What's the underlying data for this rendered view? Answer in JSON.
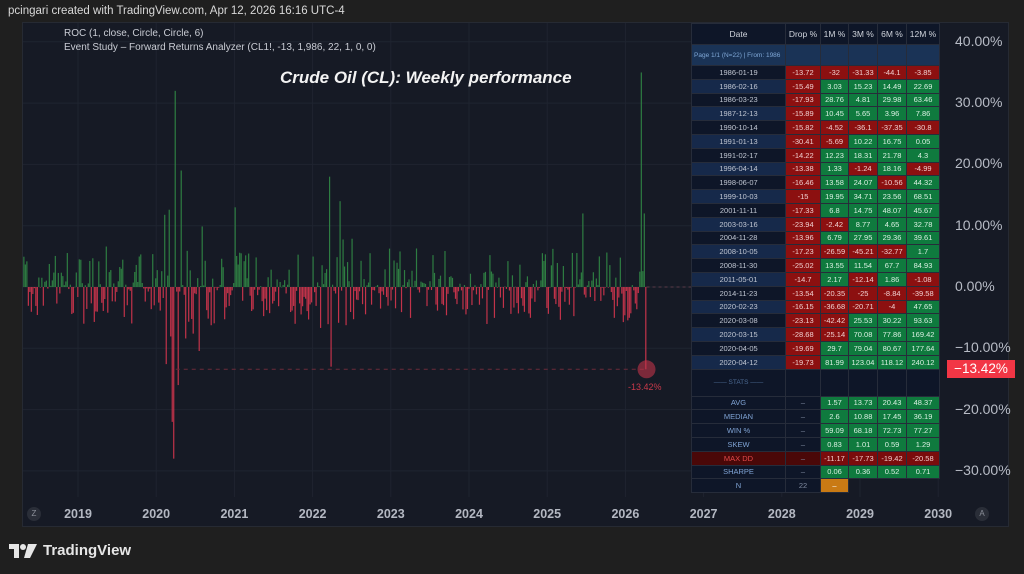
{
  "credit": "pcingari created with TradingView.com, Apr 12, 2026 16:16 UTC-4",
  "legend": {
    "line1": "ROC (1, close, Circle, Circle, 6)",
    "line2": "Event Study – Forward Returns Analyzer (CL1!, -13, 1,986, 22, 1, 0, 0)"
  },
  "footer": {
    "brand": "TradingView",
    "logo_icon": "tradingview-logo-icon"
  },
  "buttons": {
    "zoom_reset": "Z",
    "auto_scale": "A"
  },
  "price_tag": "−13.42%",
  "drop_marker_label": "-13.42%",
  "colors": {
    "positive": "#2e7d42",
    "negative": "#c2334a",
    "background": "#161a25",
    "price_tag": "#f23645"
  },
  "table": {
    "headers": [
      "Date",
      "Drop %",
      "1M %",
      "3M %",
      "6M %",
      "12M %"
    ],
    "page_info": "Page 1/1  (N=22) | From: 1986",
    "rows": [
      {
        "date": "1986-01-19",
        "drop": "-13.72",
        "m1": "-32",
        "m3": "-31.33",
        "m6": "-44.1",
        "m12": "-3.85"
      },
      {
        "date": "1986-02-16",
        "drop": "-15.49",
        "m1": "3.03",
        "m3": "15.23",
        "m6": "14.49",
        "m12": "22.69"
      },
      {
        "date": "1986-03-23",
        "drop": "-17.93",
        "m1": "28.76",
        "m3": "4.81",
        "m6": "29.98",
        "m12": "63.46"
      },
      {
        "date": "1987-12-13",
        "drop": "-15.89",
        "m1": "10.45",
        "m3": "5.65",
        "m6": "3.96",
        "m12": "7.86"
      },
      {
        "date": "1990-10-14",
        "drop": "-15.82",
        "m1": "-4.52",
        "m3": "-36.1",
        "m6": "-37.35",
        "m12": "-30.8"
      },
      {
        "date": "1991-01-13",
        "drop": "-30.41",
        "m1": "-5.69",
        "m3": "10.22",
        "m6": "16.75",
        "m12": "0.05"
      },
      {
        "date": "1991-02-17",
        "drop": "-14.22",
        "m1": "12.23",
        "m3": "18.31",
        "m6": "21.78",
        "m12": "4.3"
      },
      {
        "date": "1996-04-14",
        "drop": "-13.38",
        "m1": "1.33",
        "m3": "-1.24",
        "m6": "18.16",
        "m12": "-4.99"
      },
      {
        "date": "1998-06-07",
        "drop": "-16.46",
        "m1": "13.58",
        "m3": "24.07",
        "m6": "-10.56",
        "m12": "44.32"
      },
      {
        "date": "1999-10-03",
        "drop": "-15",
        "m1": "19.95",
        "m3": "34.71",
        "m6": "23.56",
        "m12": "68.51"
      },
      {
        "date": "2001-11-11",
        "drop": "-17.33",
        "m1": "6.8",
        "m3": "14.75",
        "m6": "48.07",
        "m12": "45.67"
      },
      {
        "date": "2003-03-16",
        "drop": "-23.94",
        "m1": "-2.42",
        "m3": "8.77",
        "m6": "4.65",
        "m12": "32.78"
      },
      {
        "date": "2004-11-28",
        "drop": "-13.96",
        "m1": "6.79",
        "m3": "27.95",
        "m6": "29.36",
        "m12": "39.61"
      },
      {
        "date": "2008-10-05",
        "drop": "-17.23",
        "m1": "-26.59",
        "m3": "-45.21",
        "m6": "-32.77",
        "m12": "1.7"
      },
      {
        "date": "2008-11-30",
        "drop": "-25.02",
        "m1": "13.55",
        "m3": "11.54",
        "m6": "67.7",
        "m12": "84.93"
      },
      {
        "date": "2011-05-01",
        "drop": "-14.7",
        "m1": "2.17",
        "m3": "-12.14",
        "m6": "1.86",
        "m12": "-1.08"
      },
      {
        "date": "2014-11-23",
        "drop": "-13.54",
        "m1": "-20.35",
        "m3": "-25",
        "m6": "-8.84",
        "m12": "-39.58"
      },
      {
        "date": "2020-02-23",
        "drop": "-16.15",
        "m1": "-36.68",
        "m3": "-20.71",
        "m6": "-4",
        "m12": "47.65"
      },
      {
        "date": "2020-03-08",
        "drop": "-23.13",
        "m1": "-42.42",
        "m3": "25.53",
        "m6": "30.22",
        "m12": "93.63"
      },
      {
        "date": "2020-03-15",
        "drop": "-28.68",
        "m1": "-25.14",
        "m3": "70.08",
        "m6": "77.86",
        "m12": "169.42"
      },
      {
        "date": "2020-04-05",
        "drop": "-19.69",
        "m1": "29.7",
        "m3": "79.04",
        "m6": "80.67",
        "m12": "177.64"
      },
      {
        "date": "2020-04-12",
        "drop": "-19.73",
        "m1": "81.99",
        "m3": "123.04",
        "m6": "118.12",
        "m12": "240.12"
      }
    ],
    "stats_label": "—— STATS ——",
    "stats": [
      {
        "label": "AVG",
        "drop": "–",
        "m1": "1.57",
        "m3": "13.73",
        "m6": "20.43",
        "m12": "48.37"
      },
      {
        "label": "MEDIAN",
        "drop": "–",
        "m1": "2.6",
        "m3": "10.88",
        "m6": "17.45",
        "m12": "36.19"
      },
      {
        "label": "WIN %",
        "drop": "–",
        "m1": "59.09",
        "m3": "68.18",
        "m6": "72.73",
        "m12": "77.27"
      },
      {
        "label": "SKEW",
        "drop": "–",
        "m1": "0.83",
        "m3": "1.01",
        "m6": "0.59",
        "m12": "1.29"
      },
      {
        "label": "MAX DD",
        "drop": "–",
        "m1": "-11.17",
        "m3": "-17.73",
        "m6": "-19.42",
        "m12": "-20.58"
      },
      {
        "label": "SHARPE",
        "drop": "–",
        "m1": "0.06",
        "m3": "0.36",
        "m6": "0.52",
        "m12": "0.71"
      }
    ],
    "n_row": {
      "label": "N",
      "value": "22",
      "m1": "–"
    }
  },
  "chart_data": {
    "type": "bar",
    "title": "Crude Oil (CL): Weekly performance",
    "indicator": "ROC (1, close) weekly % change",
    "xlabel": "",
    "ylabel": "",
    "x_ticks": [
      "2019",
      "2020",
      "2021",
      "2022",
      "2023",
      "2024",
      "2025",
      "2026",
      "2027",
      "2028",
      "2029",
      "2030"
    ],
    "y_ticks": [
      "40.00%",
      "30.00%",
      "20.00%",
      "10.00%",
      "0.00%",
      "−10.00%",
      "−20.00%",
      "−30.00%"
    ],
    "ylim": [
      -35,
      42
    ],
    "x_range_years": [
      2018.3,
      2030.1
    ],
    "series_start_year": 2018.3,
    "series_end_year": 2026.27,
    "threshold_line": -13.42,
    "last_value": -13.42,
    "grid": true,
    "notable_points": [
      {
        "year": 2020.23,
        "value": 32
      },
      {
        "year": 2020.27,
        "value": 27
      },
      {
        "year": 2020.21,
        "value": -28
      },
      {
        "year": 2020.19,
        "value": -22
      },
      {
        "year": 2020.28,
        "value": -16
      },
      {
        "year": 2020.31,
        "value": 19
      },
      {
        "year": 2021.0,
        "value": 13
      },
      {
        "year": 2022.2,
        "value": 18
      },
      {
        "year": 2022.35,
        "value": 14
      },
      {
        "year": 2022.23,
        "value": -13
      },
      {
        "year": 2025.45,
        "value": 12
      },
      {
        "year": 2026.2,
        "value": 35
      },
      {
        "year": 2026.24,
        "value": 12
      },
      {
        "year": 2026.27,
        "value": -13.42
      }
    ]
  }
}
